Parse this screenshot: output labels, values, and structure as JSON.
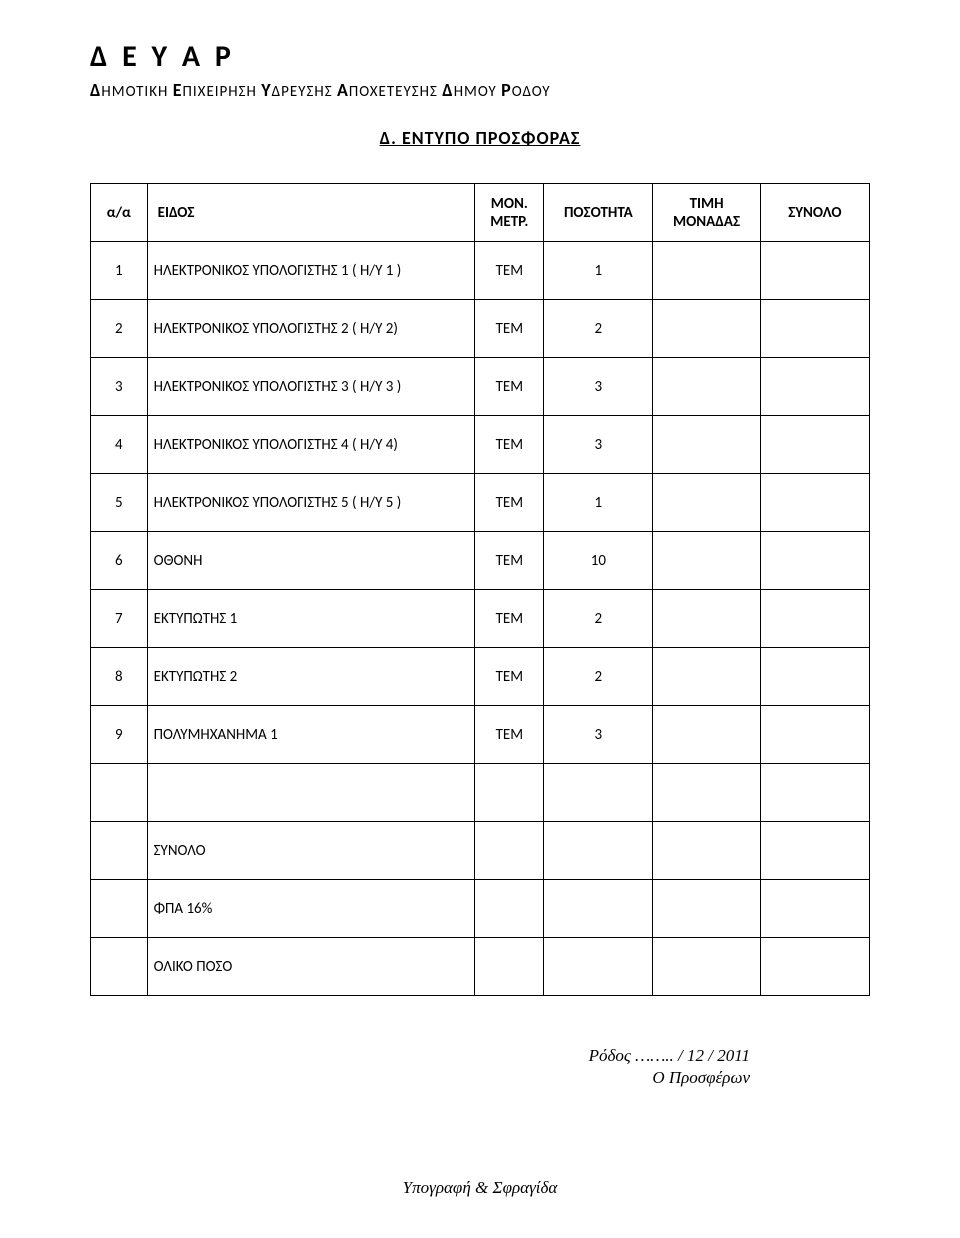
{
  "header": {
    "title": "Δ Ε Υ Α Ρ",
    "subtitle_plain": "ΗΜΟΤΙΚΗ  ΠΙΧΕΙΡΗΣΗ  ΔΡΕΥΣΗΣ  ΠΟΧΕΤΕΥΣΗΣ  ΗΜΟΥ  ΟΔΟΥ",
    "subtitle_caps": [
      "Δ",
      "Ε",
      "Υ",
      "Α",
      "Δ",
      "Ρ"
    ]
  },
  "section_title": "Δ.   ΕΝΤΥΠΟ   ΠΡΟΣΦΟΡΑΣ",
  "table": {
    "columns": {
      "aa": "α/α",
      "desc": "ΕΙΔΟΣ",
      "unit_l1": "ΜΟΝ.",
      "unit_l2": "ΜΕΤΡ.",
      "qty": "ΠΟΣΟΤΗΤΑ",
      "price_l1": "ΤΙΜΗ",
      "price_l2": "ΜΟΝΑΔΑΣ",
      "sum": "ΣΥΝΟΛΟ"
    },
    "rows": [
      {
        "aa": "1",
        "desc": "ΗΛΕΚΤΡΟΝΙΚΟΣ ΥΠΟΛΟΓΙΣΤΗΣ 1 ( Η/Υ 1 )",
        "unit": "ΤΕΜ",
        "qty": "1",
        "price": "",
        "sum": ""
      },
      {
        "aa": "2",
        "desc": "ΗΛΕΚΤΡΟΝΙΚΟΣ ΥΠΟΛΟΓΙΣΤΗΣ 2 ( Η/Υ 2)",
        "unit": "ΤΕΜ",
        "qty": "2",
        "price": "",
        "sum": ""
      },
      {
        "aa": "3",
        "desc": "ΗΛΕΚΤΡΟΝΙΚΟΣ ΥΠΟΛΟΓΙΣΤΗΣ 3 ( Η/Υ 3 )",
        "unit": "ΤΕΜ",
        "qty": "3",
        "price": "",
        "sum": ""
      },
      {
        "aa": "4",
        "desc": "ΗΛΕΚΤΡΟΝΙΚΟΣ ΥΠΟΛΟΓΙΣΤΗΣ 4 ( Η/Υ 4)",
        "unit": "ΤΕΜ",
        "qty": "3",
        "price": "",
        "sum": ""
      },
      {
        "aa": "5",
        "desc": "ΗΛΕΚΤΡΟΝΙΚΟΣ ΥΠΟΛΟΓΙΣΤΗΣ 5 ( Η/Υ 5 )",
        "unit": "ΤΕΜ",
        "qty": "1",
        "price": "",
        "sum": ""
      },
      {
        "aa": "6",
        "desc": "ΟΘΟΝΗ",
        "unit": "ΤΕΜ",
        "qty": "10",
        "price": "",
        "sum": ""
      },
      {
        "aa": "7",
        "desc": "ΕΚΤΥΠΩΤΗΣ 1",
        "unit": "ΤΕΜ",
        "qty": "2",
        "price": "",
        "sum": ""
      },
      {
        "aa": "8",
        "desc": "ΕΚΤΥΠΩΤΗΣ 2",
        "unit": "ΤΕΜ",
        "qty": "2",
        "price": "",
        "sum": ""
      },
      {
        "aa": "9",
        "desc": "ΠΟΛΥΜΗΧΑΝΗΜΑ 1",
        "unit": "ΤΕΜ",
        "qty": "3",
        "price": "",
        "sum": ""
      }
    ],
    "blank_label": "",
    "summary": {
      "synolo": "ΣΥΝΟΛΟ",
      "fpa": "ΦΠΑ 16%",
      "oliko": "ΟΛΙΚΟ ΠΟΣΟ"
    }
  },
  "footer": {
    "place_date": "Ρόδος …….. / 12 / 2011",
    "offerer": "Ο Προσφέρων",
    "signature": "Υπογραφή & Σφραγίδα"
  }
}
